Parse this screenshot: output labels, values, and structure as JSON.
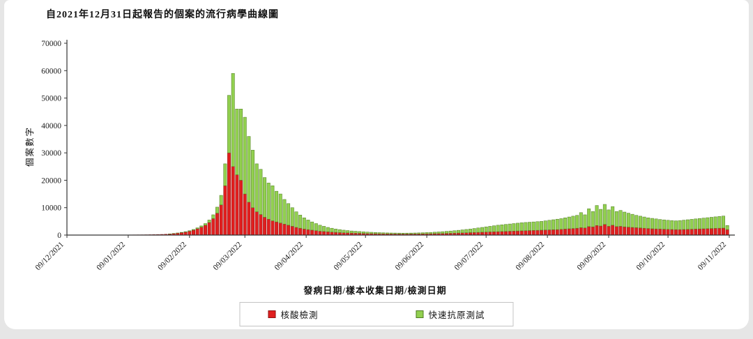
{
  "chart_data": {
    "type": "bar",
    "stacked": true,
    "title": "自2021年12月31日起報告的個案的流行病學曲線圖",
    "xlabel": "發病日期/樣本收集日期/檢測日期",
    "ylabel": "個案數字",
    "ylim": [
      0,
      70000
    ],
    "y_ticks": [
      0,
      10000,
      20000,
      30000,
      40000,
      50000,
      60000,
      70000
    ],
    "x_tick_labels": [
      "09/12/2021",
      "09/01/2022",
      "09/02/2022",
      "09/03/2022",
      "09/04/2022",
      "09/05/2022",
      "09/06/2022",
      "09/07/2022",
      "09/08/2022",
      "09/09/2022",
      "09/10/2022",
      "09/11/2022"
    ],
    "tick_day_offsets": [
      0,
      31,
      62,
      90,
      121,
      151,
      182,
      212,
      243,
      274,
      304,
      335
    ],
    "total_days": 335,
    "bar_day_step": 2,
    "grid": false,
    "legend_position": "bottom",
    "axis_color": "#333333",
    "series": [
      {
        "name": "核酸檢測",
        "color": "#e01f1f",
        "edge_color": "#8f1212",
        "values": [
          10,
          12,
          15,
          12,
          14,
          16,
          18,
          20,
          22,
          25,
          30,
          35,
          40,
          45,
          50,
          60,
          70,
          80,
          90,
          100,
          120,
          140,
          170,
          200,
          250,
          300,
          400,
          550,
          700,
          900,
          1100,
          1400,
          1800,
          2300,
          2900,
          3600,
          4600,
          6000,
          8000,
          11000,
          18000,
          30000,
          25000,
          22000,
          20000,
          15000,
          12000,
          10000,
          8500,
          7500,
          6500,
          5800,
          5200,
          4800,
          4400,
          4000,
          3600,
          3200,
          2800,
          2500,
          2200,
          2000,
          1800,
          1600,
          1400,
          1300,
          1200,
          1100,
          1000,
          900,
          850,
          800,
          750,
          700,
          650,
          600,
          550,
          520,
          500,
          480,
          460,
          440,
          430,
          420,
          410,
          400,
          400,
          410,
          420,
          430,
          450,
          470,
          490,
          520,
          550,
          580,
          620,
          660,
          700,
          750,
          800,
          850,
          900,
          950,
          1000,
          1050,
          1100,
          1150,
          1200,
          1250,
          1300,
          1350,
          1400,
          1450,
          1500,
          1550,
          1600,
          1650,
          1700,
          1750,
          1800,
          1850,
          1900,
          1950,
          2000,
          2100,
          2200,
          2300,
          2400,
          2500,
          2700,
          2600,
          3100,
          3000,
          3500,
          3300,
          3900,
          3200,
          3600,
          3100,
          3200,
          3000,
          2900,
          2800,
          2700,
          2600,
          2500,
          2400,
          2300,
          2250,
          2200,
          2150,
          2100,
          2050,
          2000,
          2000,
          2050,
          2100,
          2150,
          2200,
          2250,
          2300,
          2350,
          2400,
          2450,
          2500,
          2550,
          2000
        ]
      },
      {
        "name": "快速抗原測試",
        "color": "#92d050",
        "edge_color": "#4e7a22",
        "values": [
          0,
          0,
          0,
          0,
          0,
          0,
          0,
          0,
          0,
          0,
          0,
          0,
          0,
          0,
          0,
          0,
          0,
          5,
          5,
          10,
          10,
          15,
          15,
          20,
          25,
          30,
          40,
          60,
          80,
          100,
          150,
          200,
          250,
          350,
          450,
          600,
          900,
          1400,
          2200,
          3500,
          8000,
          21000,
          34000,
          24000,
          26000,
          28000,
          24000,
          21000,
          17500,
          16500,
          14500,
          13200,
          12800,
          11200,
          10600,
          9000,
          7900,
          6800,
          5700,
          4800,
          4100,
          3500,
          3000,
          2600,
          2200,
          1900,
          1600,
          1400,
          1200,
          1100,
          950,
          850,
          750,
          700,
          650,
          600,
          550,
          500,
          450,
          420,
          390,
          360,
          340,
          330,
          320,
          310,
          320,
          330,
          350,
          380,
          410,
          450,
          490,
          540,
          600,
          670,
          740,
          820,
          900,
          1000,
          1100,
          1200,
          1300,
          1450,
          1600,
          1750,
          1900,
          2050,
          2200,
          2350,
          2450,
          2550,
          2650,
          2750,
          2850,
          2950,
          3000,
          3050,
          3100,
          3150,
          3200,
          3350,
          3500,
          3650,
          3800,
          3900,
          4100,
          4300,
          4500,
          4700,
          5500,
          4800,
          6500,
          5600,
          7300,
          6100,
          7300,
          6000,
          6800,
          5500,
          5800,
          5400,
          5100,
          4800,
          4500,
          4300,
          4100,
          3900,
          3800,
          3650,
          3500,
          3400,
          3300,
          3250,
          3200,
          3300,
          3400,
          3500,
          3600,
          3700,
          3800,
          3900,
          4000,
          4100,
          4200,
          4300,
          4400,
          1500
        ]
      }
    ]
  }
}
